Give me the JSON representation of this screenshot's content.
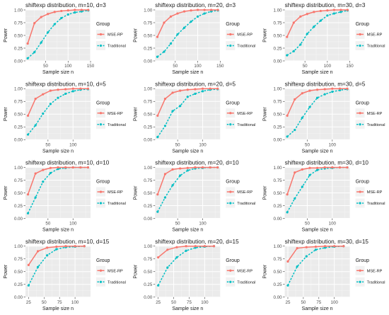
{
  "figure": {
    "legend_title": "Group",
    "legend_labels": [
      "MSE-RP",
      "Traditional"
    ],
    "xlabel": "Sample size n",
    "ylabel": "Power"
  },
  "chart_data": [
    {
      "type": "line",
      "title": "shiftexp distribution, m=10, d=3",
      "xlabel": "Sample size n",
      "ylabel": "Power",
      "xlim": [
        5,
        150
      ],
      "ylim": [
        0,
        1
      ],
      "xticks": [
        50,
        100,
        150
      ],
      "yticks": [
        0,
        0.25,
        0.5,
        0.75,
        1
      ],
      "grid": true,
      "legend_position": "right",
      "x": [
        10,
        25,
        40,
        55,
        70,
        85,
        100,
        115,
        130,
        145
      ],
      "series": [
        {
          "name": "MSE-RP",
          "color": "#F8766D",
          "values": [
            0.34,
            0.74,
            0.86,
            0.92,
            0.96,
            0.98,
            0.99,
            1.0,
            1.0,
            1.0
          ]
        },
        {
          "name": "Traditional",
          "color": "#00BFC4",
          "values": [
            0.05,
            0.17,
            0.36,
            0.56,
            0.72,
            0.84,
            0.91,
            0.95,
            0.97,
            0.99
          ]
        }
      ]
    },
    {
      "type": "line",
      "title": "shiftexp distribution, m=20, d=3",
      "xlabel": "Sample size n",
      "ylabel": "Power",
      "xlim": [
        5,
        150
      ],
      "ylim": [
        0,
        1
      ],
      "xticks": [
        50,
        100,
        150
      ],
      "yticks": [
        0,
        0.25,
        0.5,
        0.75,
        1
      ],
      "grid": true,
      "legend_position": "right",
      "x": [
        10,
        25,
        40,
        55,
        70,
        85,
        100,
        115,
        130,
        145
      ],
      "series": [
        {
          "name": "MSE-RP",
          "color": "#F8766D",
          "values": [
            0.47,
            0.75,
            0.87,
            0.93,
            0.97,
            0.99,
            1.0,
            1.0,
            1.0,
            1.0
          ]
        },
        {
          "name": "Traditional",
          "color": "#00BFC4",
          "values": [
            0.08,
            0.18,
            0.34,
            0.52,
            0.65,
            0.77,
            0.87,
            0.93,
            0.97,
            0.99
          ]
        }
      ]
    },
    {
      "type": "line",
      "title": "shiftexp distribution, m=30, d=3",
      "xlabel": "Sample size n",
      "ylabel": "Power",
      "xlim": [
        5,
        150
      ],
      "ylim": [
        0,
        1
      ],
      "xticks": [
        50,
        100,
        150
      ],
      "yticks": [
        0,
        0.25,
        0.5,
        0.75,
        1
      ],
      "grid": true,
      "legend_position": "right",
      "x": [
        10,
        25,
        40,
        55,
        70,
        85,
        100,
        115,
        130,
        145
      ],
      "series": [
        {
          "name": "MSE-RP",
          "color": "#F8766D",
          "values": [
            0.47,
            0.75,
            0.87,
            0.92,
            0.96,
            0.98,
            0.99,
            1.0,
            1.0,
            1.0
          ]
        },
        {
          "name": "Traditional",
          "color": "#00BFC4",
          "values": [
            0.11,
            0.19,
            0.32,
            0.53,
            0.67,
            0.79,
            0.89,
            0.93,
            0.96,
            0.99
          ]
        }
      ]
    },
    {
      "type": "line",
      "title": "shiftexp distribution, m=10, d=5",
      "xlabel": "Sample size n",
      "ylabel": "Power",
      "xlim": [
        5,
        135
      ],
      "ylim": [
        0,
        1
      ],
      "xticks": [
        50,
        100
      ],
      "yticks": [
        0,
        0.25,
        0.5,
        0.75,
        1
      ],
      "grid": true,
      "legend_position": "right",
      "x": [
        10,
        25,
        40,
        55,
        70,
        85,
        100,
        115,
        130
      ],
      "series": [
        {
          "name": "MSE-RP",
          "color": "#F8766D",
          "values": [
            0.47,
            0.8,
            0.89,
            0.96,
            0.98,
            0.99,
            1.0,
            1.0,
            1.0
          ]
        },
        {
          "name": "Traditional",
          "color": "#00BFC4",
          "values": [
            0.1,
            0.28,
            0.51,
            0.7,
            0.82,
            0.9,
            0.95,
            0.98,
            0.99
          ]
        }
      ]
    },
    {
      "type": "line",
      "title": "shiftexp distribution, m=20, d=5",
      "xlabel": "Sample size n",
      "ylabel": "Power",
      "xlim": [
        5,
        135
      ],
      "ylim": [
        0,
        1
      ],
      "xticks": [
        50,
        100
      ],
      "yticks": [
        0,
        0.25,
        0.5,
        0.75,
        1
      ],
      "grid": true,
      "legend_position": "right",
      "x": [
        10,
        25,
        40,
        55,
        70,
        85,
        100,
        115,
        130
      ],
      "series": [
        {
          "name": "MSE-RP",
          "color": "#F8766D",
          "values": [
            0.47,
            0.8,
            0.92,
            0.96,
            0.98,
            0.99,
            1.0,
            1.0,
            1.0
          ]
        },
        {
          "name": "Traditional",
          "color": "#00BFC4",
          "values": [
            0.05,
            0.27,
            0.56,
            0.66,
            0.84,
            0.9,
            0.95,
            0.98,
            0.99
          ]
        }
      ]
    },
    {
      "type": "line",
      "title": "shiftexp distribution, m=30, d=5",
      "xlabel": "Sample size n",
      "ylabel": "Power",
      "xlim": [
        5,
        135
      ],
      "ylim": [
        0,
        1
      ],
      "xticks": [
        50,
        100
      ],
      "yticks": [
        0,
        0.25,
        0.5,
        0.75,
        1
      ],
      "grid": true,
      "legend_position": "right",
      "x": [
        10,
        25,
        40,
        55,
        70,
        85,
        100,
        115,
        130
      ],
      "series": [
        {
          "name": "MSE-RP",
          "color": "#F8766D",
          "values": [
            0.47,
            0.79,
            0.91,
            0.96,
            0.98,
            0.99,
            1.0,
            1.0,
            1.0
          ]
        },
        {
          "name": "Traditional",
          "color": "#00BFC4",
          "values": [
            0.06,
            0.19,
            0.43,
            0.64,
            0.82,
            0.89,
            0.94,
            0.97,
            0.99
          ]
        }
      ]
    },
    {
      "type": "line",
      "title": "shiftexp distribution, m=10, d=10",
      "xlabel": "Sample size n",
      "ylabel": "Power",
      "xlim": [
        5,
        135
      ],
      "ylim": [
        0,
        1
      ],
      "xticks": [
        50,
        100
      ],
      "yticks": [
        0,
        0.25,
        0.5,
        0.75,
        1
      ],
      "grid": true,
      "legend_position": "right",
      "x": [
        10,
        25,
        40,
        55,
        70,
        85,
        100,
        115,
        130
      ],
      "series": [
        {
          "name": "MSE-RP",
          "color": "#F8766D",
          "values": [
            0.47,
            0.88,
            0.95,
            0.99,
            1.0,
            1.0,
            1.0,
            1.0,
            1.0
          ]
        },
        {
          "name": "Traditional",
          "color": "#00BFC4",
          "values": [
            0.1,
            0.41,
            0.72,
            0.89,
            0.97,
            0.99,
            1.0,
            1.0,
            1.0
          ]
        }
      ]
    },
    {
      "type": "line",
      "title": "shiftexp distribution, m=20, d=10",
      "xlabel": "Sample size n",
      "ylabel": "Power",
      "xlim": [
        5,
        135
      ],
      "ylim": [
        0,
        1
      ],
      "xticks": [
        50,
        100
      ],
      "yticks": [
        0,
        0.25,
        0.5,
        0.75,
        1
      ],
      "grid": true,
      "legend_position": "right",
      "x": [
        10,
        25,
        40,
        55,
        70,
        85,
        100,
        115,
        130
      ],
      "series": [
        {
          "name": "MSE-RP",
          "color": "#F8766D",
          "values": [
            0.47,
            0.87,
            0.96,
            0.98,
            0.99,
            1.0,
            1.0,
            1.0,
            1.0
          ]
        },
        {
          "name": "Traditional",
          "color": "#00BFC4",
          "values": [
            0.13,
            0.41,
            0.65,
            0.84,
            0.94,
            0.98,
            0.99,
            1.0,
            1.0
          ]
        }
      ]
    },
    {
      "type": "line",
      "title": "shiftexp distribution, m=30, d=10",
      "xlabel": "Sample size n",
      "ylabel": "Power",
      "xlim": [
        5,
        135
      ],
      "ylim": [
        0,
        1
      ],
      "xticks": [
        50,
        100
      ],
      "yticks": [
        0,
        0.25,
        0.5,
        0.75,
        1
      ],
      "grid": true,
      "legend_position": "right",
      "x": [
        10,
        25,
        40,
        55,
        70,
        85,
        100,
        115,
        130
      ],
      "series": [
        {
          "name": "MSE-RP",
          "color": "#F8766D",
          "values": [
            0.47,
            0.9,
            0.96,
            0.99,
            0.99,
            1.0,
            1.0,
            1.0,
            1.0
          ]
        },
        {
          "name": "Traditional",
          "color": "#00BFC4",
          "values": [
            0.12,
            0.39,
            0.62,
            0.85,
            0.95,
            0.98,
            0.99,
            1.0,
            1.0
          ]
        }
      ]
    },
    {
      "type": "line",
      "title": "shiftexp distribution, m=10, d=15",
      "xlabel": "Sample size n",
      "ylabel": "Power",
      "xlim": [
        20,
        125
      ],
      "ylim": [
        0,
        1
      ],
      "xticks": [
        25,
        50,
        75,
        100
      ],
      "yticks": [
        0,
        0.25,
        0.5,
        0.75,
        1
      ],
      "grid": true,
      "legend_position": "right",
      "x": [
        25,
        40,
        55,
        70,
        85,
        100,
        115
      ],
      "series": [
        {
          "name": "MSE-RP",
          "color": "#F8766D",
          "values": [
            0.63,
            0.9,
            0.97,
            0.99,
            1.0,
            1.0,
            1.0
          ]
        },
        {
          "name": "Traditional",
          "color": "#00BFC4",
          "values": [
            0.23,
            0.59,
            0.82,
            0.94,
            0.98,
            0.99,
            1.0
          ]
        }
      ]
    },
    {
      "type": "line",
      "title": "shiftexp distribution, m=20, d=15",
      "xlabel": "Sample size n",
      "ylabel": "Power",
      "xlim": [
        20,
        125
      ],
      "ylim": [
        0,
        1
      ],
      "xticks": [
        25,
        50,
        75,
        100
      ],
      "yticks": [
        0,
        0.25,
        0.5,
        0.75,
        1
      ],
      "grid": true,
      "legend_position": "right",
      "x": [
        25,
        40,
        55,
        70,
        85,
        100,
        115
      ],
      "series": [
        {
          "name": "MSE-RP",
          "color": "#F8766D",
          "values": [
            0.78,
            0.93,
            0.98,
            1.0,
            1.0,
            1.0,
            1.0
          ]
        },
        {
          "name": "Traditional",
          "color": "#00BFC4",
          "values": [
            0.23,
            0.58,
            0.78,
            0.91,
            0.97,
            0.99,
            1.0
          ]
        }
      ]
    },
    {
      "type": "line",
      "title": "shiftexp distribution, m=30, d=15",
      "xlabel": "Sample size n",
      "ylabel": "Power",
      "xlim": [
        20,
        125
      ],
      "ylim": [
        0,
        1
      ],
      "xticks": [
        25,
        50,
        75,
        100
      ],
      "yticks": [
        0,
        0.25,
        0.5,
        0.75,
        1
      ],
      "grid": true,
      "legend_position": "right",
      "x": [
        25,
        40,
        55,
        70,
        85,
        100,
        115
      ],
      "series": [
        {
          "name": "MSE-RP",
          "color": "#F8766D",
          "values": [
            0.7,
            0.96,
            0.98,
            0.99,
            1.0,
            1.0,
            1.0
          ]
        },
        {
          "name": "Traditional",
          "color": "#00BFC4",
          "values": [
            0.23,
            0.6,
            0.8,
            0.93,
            0.97,
            0.99,
            1.0
          ]
        }
      ]
    }
  ]
}
